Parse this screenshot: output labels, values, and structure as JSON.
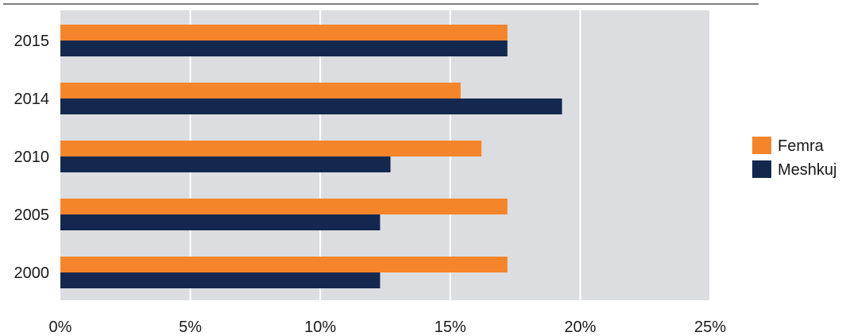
{
  "chart_data": {
    "type": "bar",
    "orientation": "horizontal",
    "categories": [
      "2015",
      "2014",
      "2010",
      "2005",
      "2000"
    ],
    "series": [
      {
        "name": "Femra",
        "color": "#F5852A",
        "values": [
          17.2,
          15.4,
          16.2,
          17.2,
          17.2
        ]
      },
      {
        "name": "Meshkuj",
        "color": "#14284F",
        "values": [
          17.2,
          19.3,
          12.7,
          12.3,
          12.3
        ]
      }
    ],
    "x_ticks": [
      "0%",
      "5%",
      "10%",
      "15%",
      "20%",
      "25%"
    ],
    "xlim": [
      0,
      25
    ],
    "grid": true,
    "legend_position": "right",
    "colors": {
      "plot_background": "#DCDDE0",
      "gridline": "#FFFFFF",
      "top_rule": "#555555"
    }
  }
}
